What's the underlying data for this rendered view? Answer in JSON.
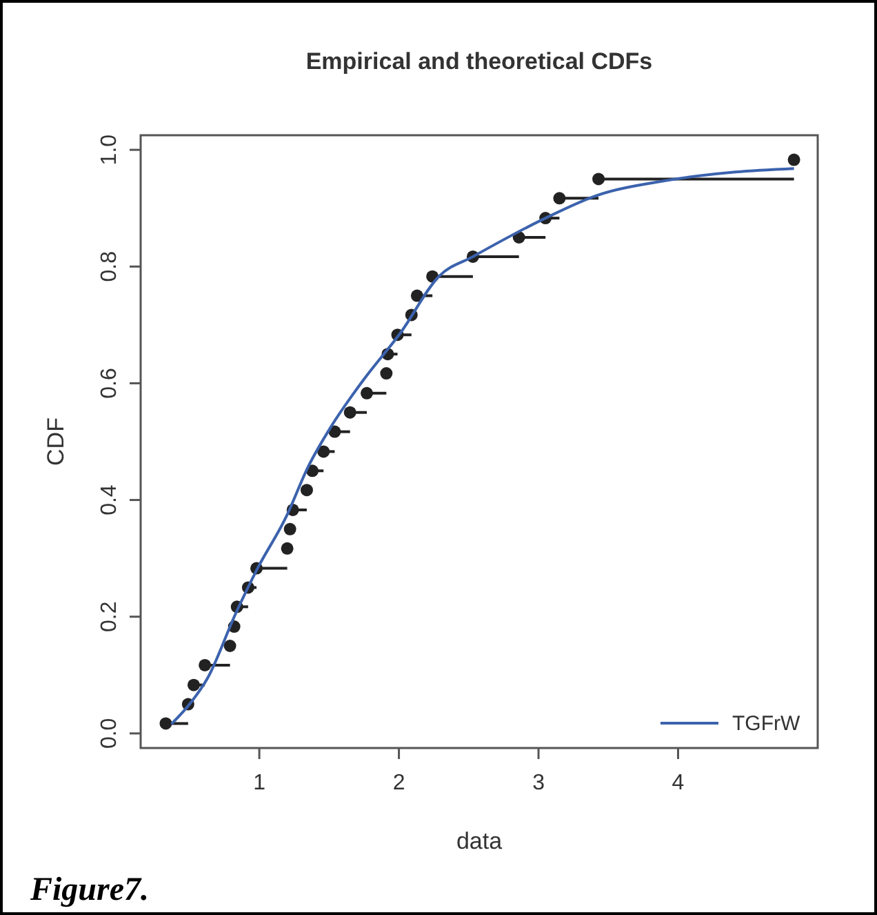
{
  "chart_data": {
    "type": "scatter",
    "title": "Empirical and theoretical CDFs",
    "xlabel": "data",
    "ylabel": "CDF",
    "annotations": [
      "Figure7."
    ],
    "xlim": [
      0.15,
      5.0
    ],
    "ylim": [
      -0.025,
      1.025
    ],
    "xticks": [
      1,
      2,
      3,
      4
    ],
    "yticks": [
      {
        "value": 0,
        "label": "0.0"
      },
      {
        "value": 0.2,
        "label": "0.2"
      },
      {
        "value": 0.4,
        "label": "0.4"
      },
      {
        "value": 0.6,
        "label": "0.6"
      },
      {
        "value": 0.8,
        "label": "0.8"
      },
      {
        "value": 1,
        "label": "1.0"
      }
    ],
    "grid": false,
    "legend": "bottom right",
    "marker": "circle",
    "series": [
      {
        "color": "#222222",
        "x": [
          0.33,
          0.49,
          0.53,
          0.61,
          0.79,
          0.82,
          0.84,
          0.92,
          0.98,
          1.2,
          1.22,
          1.24,
          1.34,
          1.38,
          1.46,
          1.54,
          1.65,
          1.77,
          1.91,
          1.92,
          1.99,
          2.09,
          2.13,
          2.24,
          2.53,
          2.86,
          3.05,
          3.15,
          3.43,
          4.83
        ],
        "values": [
          0.017,
          0.05,
          0.083,
          0.117,
          0.15,
          0.183,
          0.217,
          0.25,
          0.283,
          0.317,
          0.35,
          0.383,
          0.417,
          0.45,
          0.483,
          0.517,
          0.55,
          0.583,
          0.617,
          0.65,
          0.683,
          0.717,
          0.75,
          0.783,
          0.817,
          0.85,
          0.883,
          0.917,
          0.95,
          0.983
        ],
        "xerrors": [
          [
            0.33,
            0.49
          ],
          [
            0.49,
            0.53
          ],
          [
            0.53,
            0.61
          ],
          [
            0.61,
            0.79
          ],
          [
            0.79,
            0.82
          ],
          [
            0.82,
            0.84
          ],
          [
            0.84,
            0.92
          ],
          [
            0.92,
            0.98
          ],
          [
            0.98,
            1.2
          ],
          [
            1.2,
            1.22
          ],
          [
            1.22,
            1.24
          ],
          [
            1.24,
            1.34
          ],
          [
            1.34,
            1.38
          ],
          [
            1.38,
            1.46
          ],
          [
            1.46,
            1.54
          ],
          [
            1.54,
            1.65
          ],
          [
            1.65,
            1.77
          ],
          [
            1.77,
            1.91
          ],
          [
            1.91,
            1.92
          ],
          [
            1.92,
            1.99
          ],
          [
            1.99,
            2.09
          ],
          [
            2.09,
            2.13
          ],
          [
            2.13,
            2.24
          ],
          [
            2.24,
            2.53
          ],
          [
            2.53,
            2.86
          ],
          [
            2.86,
            3.05
          ],
          [
            3.05,
            3.15
          ],
          [
            3.15,
            3.43
          ],
          [
            3.43,
            4.83
          ],
          null
        ]
      },
      {
        "type": "line",
        "name": "TGFrW",
        "color": "#3b62ad",
        "marker": "none",
        "x": [
          0.37,
          0.5,
          0.63,
          0.83,
          0.99,
          1.19,
          1.35,
          1.52,
          1.75,
          2.01,
          2.29,
          2.53,
          3.05,
          3.42,
          3.88,
          4.41,
          4.83
        ],
        "values": [
          0.016,
          0.05,
          0.095,
          0.205,
          0.284,
          0.37,
          0.457,
          0.528,
          0.607,
          0.686,
          0.784,
          0.817,
          0.883,
          0.922,
          0.946,
          0.962,
          0.968
        ]
      }
    ]
  }
}
